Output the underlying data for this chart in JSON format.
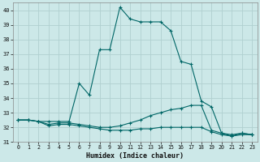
{
  "xlabel": "Humidex (Indice chaleur)",
  "background_color": "#cce8e8",
  "grid_color": "#b0d0d0",
  "line_color": "#006666",
  "x": [
    0,
    1,
    2,
    3,
    4,
    5,
    6,
    7,
    8,
    9,
    10,
    11,
    12,
    13,
    14,
    15,
    16,
    17,
    18,
    19,
    20,
    21,
    22,
    23
  ],
  "curve1": [
    32.5,
    32.5,
    32.4,
    32.4,
    32.4,
    32.4,
    35.0,
    34.2,
    37.3,
    37.3,
    40.2,
    39.4,
    39.2,
    39.2,
    39.2,
    38.6,
    36.5,
    36.3,
    33.8,
    33.4,
    31.6,
    31.4,
    31.6,
    31.5
  ],
  "curve2": [
    32.5,
    32.5,
    32.4,
    32.2,
    32.3,
    32.3,
    32.2,
    32.1,
    32.0,
    32.0,
    32.1,
    32.3,
    32.5,
    32.8,
    33.0,
    33.2,
    33.3,
    33.5,
    33.5,
    31.8,
    31.6,
    31.5,
    31.6,
    31.5
  ],
  "curve3": [
    32.5,
    32.5,
    32.4,
    32.1,
    32.2,
    32.2,
    32.1,
    32.0,
    31.9,
    31.8,
    31.8,
    31.8,
    31.9,
    31.9,
    32.0,
    32.0,
    32.0,
    32.0,
    32.0,
    31.7,
    31.5,
    31.4,
    31.5,
    31.5
  ],
  "ylim": [
    31,
    40.5
  ],
  "xlim": [
    -0.5,
    23.5
  ],
  "yticks": [
    31,
    32,
    33,
    34,
    35,
    36,
    37,
    38,
    39,
    40
  ],
  "xticks": [
    0,
    1,
    2,
    3,
    4,
    5,
    6,
    7,
    8,
    9,
    10,
    11,
    12,
    13,
    14,
    15,
    16,
    17,
    18,
    19,
    20,
    21,
    22,
    23
  ]
}
